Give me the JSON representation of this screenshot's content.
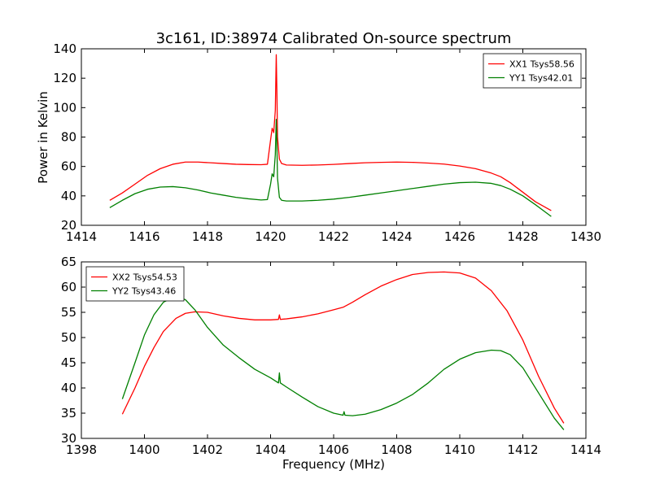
{
  "figure": {
    "title": "3c161, ID:38974 Calibrated On-source spectrum",
    "ylabel": "Power in Kelvin",
    "xlabel": "Frequency (MHz)"
  },
  "chart_data": [
    {
      "type": "line",
      "title": "3c161, ID:38974 Calibrated On-source spectrum",
      "xlabel": "",
      "ylabel": "Power in Kelvin",
      "xlim": [
        1414,
        1430
      ],
      "ylim": [
        20,
        140
      ],
      "xticks": [
        1414,
        1416,
        1418,
        1420,
        1422,
        1424,
        1426,
        1428,
        1430
      ],
      "yticks": [
        20,
        40,
        60,
        80,
        100,
        120,
        140
      ],
      "grid": false,
      "legend_position": "top-right",
      "series": [
        {
          "name": "XX1 Tsys58.56",
          "color": "#ff0000",
          "x": [
            1414.9,
            1415.3,
            1415.7,
            1416.1,
            1416.5,
            1416.9,
            1417.3,
            1417.7,
            1418.1,
            1418.5,
            1418.9,
            1419.3,
            1419.7,
            1419.9,
            1420.0,
            1420.05,
            1420.1,
            1420.15,
            1420.18,
            1420.2,
            1420.22,
            1420.28,
            1420.35,
            1420.5,
            1421.0,
            1421.5,
            1422.0,
            1422.5,
            1423.0,
            1423.5,
            1424.0,
            1424.5,
            1425.0,
            1425.5,
            1426.0,
            1426.5,
            1427.0,
            1427.3,
            1427.6,
            1428.0,
            1428.4,
            1428.9
          ],
          "y": [
            37,
            42,
            48,
            54,
            58.5,
            61.5,
            63,
            63,
            62.5,
            62,
            61.5,
            61.3,
            61.2,
            61.5,
            78,
            86,
            83,
            98,
            136,
            112,
            80,
            65,
            62,
            61,
            60.8,
            61,
            61.4,
            62,
            62.5,
            62.8,
            63,
            62.8,
            62.3,
            61.6,
            60.3,
            58.5,
            55.5,
            53,
            49,
            42.5,
            36,
            30
          ]
        },
        {
          "name": "YY1 Tsys42.01",
          "color": "#008000",
          "x": [
            1414.9,
            1415.3,
            1415.7,
            1416.1,
            1416.5,
            1416.9,
            1417.3,
            1417.7,
            1418.1,
            1418.5,
            1418.9,
            1419.3,
            1419.7,
            1419.9,
            1420.0,
            1420.05,
            1420.1,
            1420.15,
            1420.18,
            1420.2,
            1420.22,
            1420.28,
            1420.35,
            1420.5,
            1421.0,
            1421.5,
            1422.0,
            1422.5,
            1423.0,
            1423.5,
            1424.0,
            1424.5,
            1425.0,
            1425.5,
            1426.0,
            1426.5,
            1427.0,
            1427.3,
            1427.6,
            1428.0,
            1428.4,
            1428.9
          ],
          "y": [
            32,
            37,
            41.5,
            44.5,
            46,
            46.3,
            45.5,
            44,
            42,
            40.5,
            39,
            38,
            37.2,
            37.5,
            48,
            55,
            53,
            68,
            92,
            75,
            52,
            39,
            37,
            36.5,
            36.5,
            37,
            37.8,
            39,
            40.5,
            42,
            43.5,
            45,
            46.5,
            48,
            49,
            49.3,
            48.5,
            47,
            44.5,
            40,
            34,
            26
          ]
        }
      ]
    },
    {
      "type": "line",
      "title": "",
      "xlabel": "Frequency (MHz)",
      "ylabel": "Power in Kelvin",
      "xlim": [
        1398,
        1414
      ],
      "ylim": [
        30,
        65
      ],
      "xticks": [
        1398,
        1400,
        1402,
        1404,
        1406,
        1408,
        1410,
        1412,
        1414
      ],
      "yticks": [
        30,
        35,
        40,
        45,
        50,
        55,
        60,
        65
      ],
      "grid": false,
      "legend_position": "top-left",
      "series": [
        {
          "name": "XX2 Tsys54.53",
          "color": "#ff0000",
          "x": [
            1399.3,
            1399.7,
            1400.0,
            1400.3,
            1400.6,
            1401.0,
            1401.3,
            1401.6,
            1402.0,
            1402.5,
            1403.0,
            1403.5,
            1404.0,
            1404.25,
            1404.28,
            1404.31,
            1404.5,
            1405.0,
            1405.5,
            1406.0,
            1406.3,
            1406.6,
            1407.0,
            1407.5,
            1408.0,
            1408.5,
            1409.0,
            1409.5,
            1410.0,
            1410.5,
            1411.0,
            1411.5,
            1412.0,
            1412.5,
            1413.0,
            1413.3
          ],
          "y": [
            34.8,
            40,
            44.3,
            48,
            51.2,
            53.8,
            54.8,
            55.1,
            55,
            54.3,
            53.8,
            53.5,
            53.5,
            53.6,
            54.5,
            53.6,
            53.7,
            54.1,
            54.7,
            55.5,
            56,
            57,
            58.5,
            60.2,
            61.5,
            62.5,
            62.9,
            63,
            62.8,
            61.8,
            59.3,
            55.3,
            49.5,
            42.3,
            36,
            33
          ]
        },
        {
          "name": "YY2 Tsys43.46",
          "color": "#008000",
          "x": [
            1399.3,
            1399.7,
            1400.0,
            1400.3,
            1400.6,
            1401.0,
            1401.3,
            1401.6,
            1402.0,
            1402.5,
            1403.0,
            1403.5,
            1404.0,
            1404.25,
            1404.28,
            1404.31,
            1404.5,
            1405.0,
            1405.5,
            1406.0,
            1406.3,
            1406.33,
            1406.36,
            1406.6,
            1407.0,
            1407.5,
            1408.0,
            1408.5,
            1409.0,
            1409.5,
            1410.0,
            1410.5,
            1411.0,
            1411.3,
            1411.6,
            1412.0,
            1412.5,
            1413.0,
            1413.3
          ],
          "y": [
            37.8,
            45,
            50.5,
            54.5,
            57,
            58.2,
            57.5,
            55.5,
            52,
            48.5,
            46,
            43.7,
            42,
            41,
            43,
            41,
            40.2,
            38.2,
            36.3,
            35,
            34.6,
            35.3,
            34.6,
            34.5,
            34.8,
            35.7,
            37,
            38.7,
            41,
            43.7,
            45.7,
            47,
            47.5,
            47.4,
            46.6,
            44,
            39,
            34,
            31.7
          ]
        }
      ]
    }
  ]
}
